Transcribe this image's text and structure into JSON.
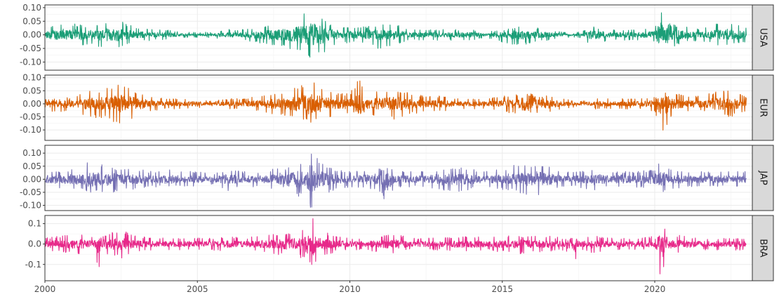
{
  "chart_data": {
    "type": "line",
    "title": "",
    "xlabel": "",
    "ylabel": "",
    "facet": "vertical",
    "grid": true,
    "x_range": [
      2000,
      2023.2
    ],
    "x_ticks": [
      2000,
      2005,
      2010,
      2015,
      2020
    ],
    "x_tick_labels": [
      "2000",
      "2005",
      "2010",
      "2015",
      "2020"
    ],
    "panels": [
      {
        "name": "USA",
        "color": "#1B9E77",
        "ylim": [
          -0.13,
          0.11
        ],
        "y_ticks": [
          0.1,
          0.05,
          0.0,
          -0.05,
          -0.1
        ],
        "y_tick_labels": [
          "0.10",
          "0.05",
          "0.00",
          "-0.05",
          "-0.10"
        ],
        "x": [
          2000.0,
          2000.5,
          2001.0,
          2001.5,
          2002.0,
          2002.5,
          2003.0,
          2003.5,
          2004.0,
          2004.5,
          2005.0,
          2005.5,
          2006.0,
          2006.5,
          2007.0,
          2007.5,
          2008.0,
          2008.5,
          2008.75,
          2009.0,
          2009.5,
          2010.0,
          2010.5,
          2011.0,
          2011.5,
          2012.0,
          2012.5,
          2013.0,
          2013.5,
          2014.0,
          2014.5,
          2015.0,
          2015.5,
          2016.0,
          2016.5,
          2017.0,
          2017.5,
          2018.0,
          2018.5,
          2019.0,
          2019.5,
          2020.0,
          2020.2,
          2020.5,
          2021.0,
          2021.5,
          2022.0,
          2022.5,
          2023.0
        ],
        "y_max": [
          0.03,
          0.04,
          0.04,
          0.03,
          0.05,
          0.05,
          0.03,
          0.02,
          0.02,
          0.01,
          0.01,
          0.01,
          0.02,
          0.02,
          0.03,
          0.04,
          0.05,
          0.08,
          0.11,
          0.07,
          0.03,
          0.03,
          0.03,
          0.04,
          0.04,
          0.02,
          0.02,
          0.02,
          0.02,
          0.02,
          0.01,
          0.02,
          0.03,
          0.03,
          0.02,
          0.01,
          0.01,
          0.03,
          0.02,
          0.02,
          0.02,
          0.03,
          0.09,
          0.04,
          0.03,
          0.02,
          0.04,
          0.05,
          0.03
        ],
        "y_min": [
          -0.03,
          -0.05,
          -0.05,
          -0.04,
          -0.05,
          -0.05,
          -0.03,
          -0.02,
          -0.02,
          -0.01,
          -0.01,
          -0.01,
          -0.02,
          -0.02,
          -0.03,
          -0.04,
          -0.05,
          -0.07,
          -0.09,
          -0.08,
          -0.04,
          -0.03,
          -0.03,
          -0.06,
          -0.04,
          -0.02,
          -0.02,
          -0.02,
          -0.02,
          -0.02,
          -0.01,
          -0.03,
          -0.04,
          -0.03,
          -0.02,
          -0.01,
          -0.01,
          -0.04,
          -0.02,
          -0.02,
          -0.02,
          -0.03,
          -0.13,
          -0.05,
          -0.03,
          -0.02,
          -0.04,
          -0.04,
          -0.03
        ]
      },
      {
        "name": "EUR",
        "color": "#D95F02",
        "ylim": [
          -0.14,
          0.11
        ],
        "y_ticks": [
          0.1,
          0.05,
          0.0,
          -0.05,
          -0.1
        ],
        "y_tick_labels": [
          "0.10",
          "0.05",
          "0.00",
          "-0.05",
          "-0.10"
        ],
        "x": [
          2000.0,
          2000.5,
          2001.0,
          2001.5,
          2002.0,
          2002.5,
          2003.0,
          2003.5,
          2004.0,
          2004.5,
          2005.0,
          2005.5,
          2006.0,
          2006.5,
          2007.0,
          2007.5,
          2008.0,
          2008.5,
          2008.75,
          2009.0,
          2009.5,
          2010.0,
          2010.3,
          2010.5,
          2011.0,
          2011.5,
          2012.0,
          2012.5,
          2013.0,
          2013.5,
          2014.0,
          2014.5,
          2015.0,
          2015.5,
          2016.0,
          2016.5,
          2017.0,
          2017.5,
          2018.0,
          2018.5,
          2019.0,
          2019.5,
          2020.0,
          2020.2,
          2020.5,
          2021.0,
          2021.5,
          2022.0,
          2022.5,
          2023.0
        ],
        "y_max": [
          0.02,
          0.02,
          0.03,
          0.05,
          0.06,
          0.08,
          0.04,
          0.03,
          0.02,
          0.02,
          0.02,
          0.01,
          0.02,
          0.02,
          0.03,
          0.04,
          0.05,
          0.08,
          0.1,
          0.06,
          0.04,
          0.04,
          0.1,
          0.04,
          0.05,
          0.06,
          0.04,
          0.03,
          0.03,
          0.02,
          0.02,
          0.02,
          0.03,
          0.04,
          0.04,
          0.03,
          0.02,
          0.01,
          0.02,
          0.02,
          0.02,
          0.02,
          0.03,
          0.09,
          0.05,
          0.03,
          0.03,
          0.05,
          0.05,
          0.03
        ],
        "y_min": [
          -0.03,
          -0.03,
          -0.04,
          -0.05,
          -0.06,
          -0.08,
          -0.05,
          -0.03,
          -0.02,
          -0.02,
          -0.02,
          -0.01,
          -0.02,
          -0.02,
          -0.03,
          -0.04,
          -0.05,
          -0.07,
          -0.08,
          -0.07,
          -0.05,
          -0.04,
          -0.04,
          -0.04,
          -0.05,
          -0.06,
          -0.04,
          -0.03,
          -0.03,
          -0.02,
          -0.02,
          -0.02,
          -0.03,
          -0.04,
          -0.09,
          -0.04,
          -0.02,
          -0.01,
          -0.02,
          -0.02,
          -0.02,
          -0.02,
          -0.03,
          -0.14,
          -0.05,
          -0.03,
          -0.03,
          -0.05,
          -0.05,
          -0.03
        ]
      },
      {
        "name": "JAP",
        "color": "#7570B3",
        "ylim": [
          -0.12,
          0.13
        ],
        "y_ticks": [
          0.1,
          0.05,
          0.0,
          -0.05,
          -0.1
        ],
        "y_tick_labels": [
          "0.10",
          "0.05",
          "0.00",
          "-0.05",
          "-0.10"
        ],
        "x": [
          2000.0,
          2000.5,
          2001.0,
          2001.5,
          2002.0,
          2002.5,
          2003.0,
          2003.5,
          2004.0,
          2004.5,
          2005.0,
          2005.5,
          2006.0,
          2006.5,
          2007.0,
          2007.5,
          2008.0,
          2008.5,
          2008.75,
          2009.0,
          2009.5,
          2010.0,
          2010.5,
          2011.0,
          2011.2,
          2011.5,
          2012.0,
          2012.5,
          2013.0,
          2013.5,
          2014.0,
          2014.5,
          2015.0,
          2015.5,
          2016.0,
          2016.5,
          2017.0,
          2017.5,
          2018.0,
          2018.5,
          2019.0,
          2019.5,
          2020.0,
          2020.2,
          2020.5,
          2021.0,
          2021.5,
          2022.0,
          2022.5,
          2023.0
        ],
        "y_max": [
          0.04,
          0.03,
          0.04,
          0.07,
          0.05,
          0.04,
          0.04,
          0.03,
          0.04,
          0.03,
          0.03,
          0.02,
          0.04,
          0.03,
          0.03,
          0.04,
          0.05,
          0.08,
          0.13,
          0.07,
          0.04,
          0.03,
          0.04,
          0.04,
          0.05,
          0.03,
          0.03,
          0.03,
          0.04,
          0.05,
          0.04,
          0.03,
          0.04,
          0.06,
          0.05,
          0.05,
          0.03,
          0.03,
          0.04,
          0.03,
          0.03,
          0.03,
          0.04,
          0.07,
          0.04,
          0.03,
          0.03,
          0.03,
          0.03,
          0.03
        ],
        "y_min": [
          -0.03,
          -0.04,
          -0.04,
          -0.05,
          -0.06,
          -0.04,
          -0.04,
          -0.03,
          -0.03,
          -0.03,
          -0.03,
          -0.02,
          -0.05,
          -0.03,
          -0.03,
          -0.04,
          -0.08,
          -0.06,
          -0.12,
          -0.07,
          -0.04,
          -0.03,
          -0.04,
          -0.05,
          -0.11,
          -0.03,
          -0.03,
          -0.03,
          -0.05,
          -0.05,
          -0.04,
          -0.03,
          -0.04,
          -0.05,
          -0.07,
          -0.05,
          -0.03,
          -0.03,
          -0.05,
          -0.03,
          -0.04,
          -0.03,
          -0.05,
          -0.06,
          -0.04,
          -0.03,
          -0.03,
          -0.03,
          -0.03,
          -0.03
        ]
      },
      {
        "name": "BRA",
        "color": "#E7298A",
        "ylim": [
          -0.18,
          0.14
        ],
        "y_ticks": [
          0.1,
          0.0,
          -0.1
        ],
        "y_tick_labels": [
          "0.1",
          "0.0",
          "-0.1"
        ],
        "x": [
          2000.0,
          2000.5,
          2001.0,
          2001.5,
          2001.75,
          2002.0,
          2002.5,
          2003.0,
          2003.5,
          2004.0,
          2004.5,
          2005.0,
          2005.5,
          2006.0,
          2006.5,
          2007.0,
          2007.5,
          2008.0,
          2008.5,
          2008.75,
          2009.0,
          2009.5,
          2010.0,
          2010.5,
          2011.0,
          2011.5,
          2012.0,
          2012.5,
          2013.0,
          2013.5,
          2014.0,
          2014.5,
          2015.0,
          2015.5,
          2016.0,
          2016.5,
          2017.0,
          2017.4,
          2017.5,
          2018.0,
          2018.5,
          2019.0,
          2019.5,
          2020.0,
          2020.2,
          2020.5,
          2021.0,
          2021.5,
          2022.0,
          2022.5,
          2023.0
        ],
        "y_max": [
          0.03,
          0.04,
          0.05,
          0.04,
          0.04,
          0.05,
          0.07,
          0.04,
          0.03,
          0.03,
          0.03,
          0.03,
          0.03,
          0.04,
          0.03,
          0.04,
          0.05,
          0.06,
          0.07,
          0.14,
          0.07,
          0.04,
          0.03,
          0.03,
          0.04,
          0.05,
          0.03,
          0.03,
          0.03,
          0.04,
          0.04,
          0.03,
          0.04,
          0.04,
          0.04,
          0.04,
          0.03,
          0.02,
          0.03,
          0.04,
          0.03,
          0.03,
          0.03,
          0.04,
          0.13,
          0.05,
          0.04,
          0.03,
          0.03,
          0.03,
          0.03
        ],
        "y_min": [
          -0.04,
          -0.04,
          -0.05,
          -0.05,
          -0.12,
          -0.05,
          -0.07,
          -0.04,
          -0.03,
          -0.03,
          -0.03,
          -0.03,
          -0.03,
          -0.04,
          -0.03,
          -0.04,
          -0.05,
          -0.06,
          -0.07,
          -0.12,
          -0.07,
          -0.04,
          -0.03,
          -0.03,
          -0.04,
          -0.05,
          -0.03,
          -0.03,
          -0.03,
          -0.04,
          -0.04,
          -0.03,
          -0.04,
          -0.05,
          -0.04,
          -0.04,
          -0.03,
          -0.09,
          -0.03,
          -0.05,
          -0.03,
          -0.03,
          -0.03,
          -0.04,
          -0.17,
          -0.05,
          -0.04,
          -0.03,
          -0.03,
          -0.03,
          -0.03
        ]
      }
    ]
  }
}
